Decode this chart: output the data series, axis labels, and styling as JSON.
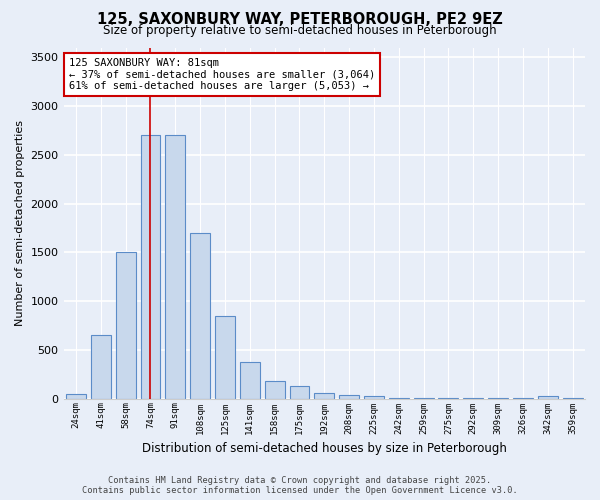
{
  "title1": "125, SAXONBURY WAY, PETERBOROUGH, PE2 9EZ",
  "title2": "Size of property relative to semi-detached houses in Peterborough",
  "xlabel": "Distribution of semi-detached houses by size in Peterborough",
  "ylabel": "Number of semi-detached properties",
  "annotation_title": "125 SAXONBURY WAY: 81sqm",
  "annotation_line1": "← 37% of semi-detached houses are smaller (3,064)",
  "annotation_line2": "61% of semi-detached houses are larger (5,053) →",
  "red_line_x": 3,
  "bar_color": "#c8d8ec",
  "bar_edge_color": "#5b8cc8",
  "red_line_color": "#cc0000",
  "annotation_box_color": "#ffffff",
  "annotation_box_edge": "#cc0000",
  "bg_color": "#e8eef8",
  "grid_color": "#ffffff",
  "footer1": "Contains HM Land Registry data © Crown copyright and database right 2025.",
  "footer2": "Contains public sector information licensed under the Open Government Licence v3.0.",
  "categories": [
    "24sqm",
    "41sqm",
    "58sqm",
    "74sqm",
    "91sqm",
    "108sqm",
    "125sqm",
    "141sqm",
    "158sqm",
    "175sqm",
    "192sqm",
    "208sqm",
    "225sqm",
    "242sqm",
    "259sqm",
    "275sqm",
    "292sqm",
    "309sqm",
    "326sqm",
    "342sqm",
    "359sqm"
  ],
  "values": [
    50,
    650,
    1500,
    2700,
    2700,
    1700,
    850,
    380,
    180,
    130,
    55,
    40,
    25,
    5,
    2,
    2,
    2,
    2,
    2,
    25,
    2
  ],
  "ylim": [
    0,
    3600
  ],
  "yticks": [
    0,
    500,
    1000,
    1500,
    2000,
    2500,
    3000,
    3500
  ],
  "n_bins": 21
}
